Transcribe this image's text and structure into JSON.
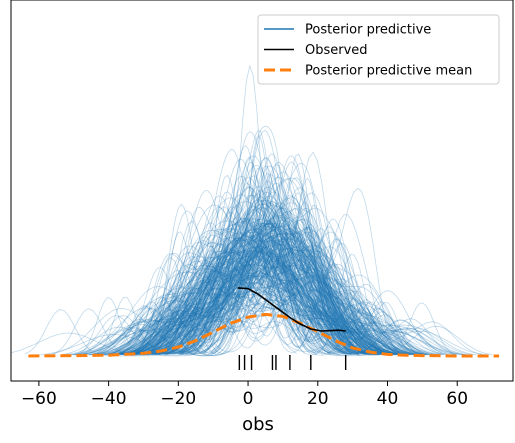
{
  "chart_data": {
    "type": "line",
    "xlabel": "obs",
    "ylabel": "",
    "xlim": [
      -68,
      76
    ],
    "ylim": [
      -0.0065,
      0.0925
    ],
    "x_ticks": [
      -60,
      -40,
      -20,
      0,
      20,
      40,
      60
    ],
    "x_tick_labels": [
      "−60",
      "−40",
      "−20",
      "0",
      "20",
      "40",
      "60"
    ],
    "y_ticks_shown": false,
    "grid": false,
    "legend_placement": "top-right",
    "colors": {
      "posterior_predictive": "#1f77b4",
      "observed": "#000000",
      "posterior_predictive_mean": "#ff7f0e"
    },
    "series": [
      {
        "name": "Posterior predictive",
        "kind": "many_kde_draws",
        "draws_visible": "hundreds",
        "x_range": [
          -63,
          72
        ],
        "peak_y_approx": 0.09
      },
      {
        "name": "Observed",
        "x": [
          -3,
          0,
          3,
          6,
          9,
          12,
          15,
          18,
          21,
          24,
          26,
          28
        ],
        "y": [
          0.0177,
          0.0175,
          0.016,
          0.014,
          0.012,
          0.01,
          0.0083,
          0.007,
          0.0065,
          0.0066,
          0.0067,
          0.0065
        ]
      },
      {
        "name": "Posterior predictive mean",
        "x": [
          -63,
          -50,
          -40,
          -30,
          -25,
          -20,
          -15,
          -10,
          -5,
          0,
          5,
          10,
          15,
          20,
          25,
          30,
          35,
          40,
          45,
          50,
          60,
          72
        ],
        "y": [
          0.0,
          0.0001,
          0.0002,
          0.0007,
          0.0013,
          0.0023,
          0.004,
          0.0062,
          0.0085,
          0.0101,
          0.0108,
          0.0103,
          0.0085,
          0.0063,
          0.004,
          0.0021,
          0.001,
          0.0004,
          0.0002,
          0.0001,
          0.0,
          0.0
        ]
      }
    ],
    "observed_rug_x": [
      -2.5,
      -1,
      1,
      7,
      8,
      12,
      18,
      28
    ],
    "legend": [
      {
        "label": "Posterior predictive",
        "style": "line",
        "color": "#1f77b4"
      },
      {
        "label": "Observed",
        "style": "line",
        "color": "#000000"
      },
      {
        "label": "Posterior predictive mean",
        "style": "dashed",
        "color": "#ff7f0e"
      }
    ]
  }
}
